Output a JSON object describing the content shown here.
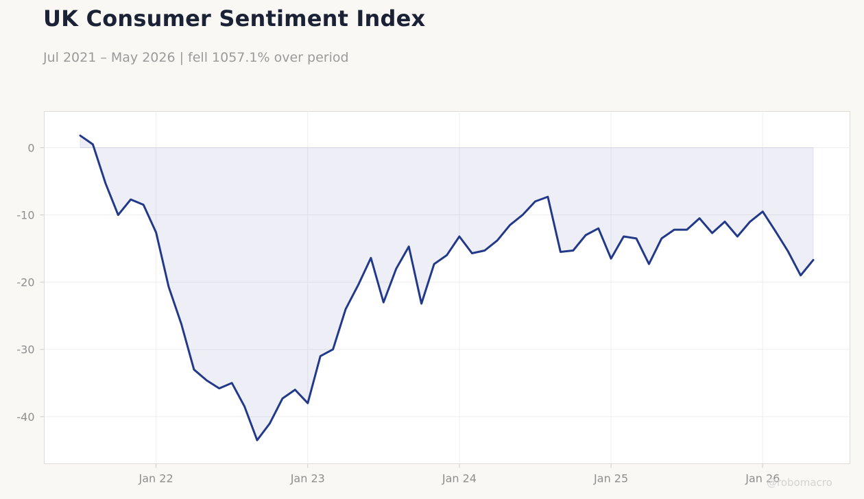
{
  "header": {
    "title": "UK Consumer Sentiment Index",
    "subtitle": "Jul 2021 – May 2026 | fell 1057.1% over period"
  },
  "watermark": "@robomacro",
  "colors": {
    "line": "#22398a",
    "fill": "#22398a",
    "background": "#f9f8f4",
    "plot_bg": "#ffffff",
    "grid": "#eeeeee",
    "tick_text": "#8e8e8e"
  },
  "chart_data": {
    "type": "area",
    "title": "UK Consumer Sentiment Index",
    "xlabel": "",
    "ylabel": "",
    "x_tick_labels": [
      "Jan 22",
      "Jan 23",
      "Jan 24",
      "Jan 25",
      "Jan 26"
    ],
    "y_ticks": [
      0,
      -10,
      -20,
      -30,
      -40
    ],
    "ylim": [
      -47,
      5.4
    ],
    "grid": true,
    "legend": "none",
    "baseline": 0,
    "x": [
      "2021-07",
      "2021-08",
      "2021-09",
      "2021-10",
      "2021-11",
      "2021-12",
      "2022-01",
      "2022-02",
      "2022-03",
      "2022-04",
      "2022-05",
      "2022-06",
      "2022-07",
      "2022-08",
      "2022-09",
      "2022-10",
      "2022-11",
      "2022-12",
      "2023-01",
      "2023-02",
      "2023-03",
      "2023-04",
      "2023-05",
      "2023-06",
      "2023-07",
      "2023-08",
      "2023-09",
      "2023-10",
      "2023-11",
      "2023-12",
      "2024-01",
      "2024-02",
      "2024-03",
      "2024-04",
      "2024-05",
      "2024-06",
      "2024-07",
      "2024-08",
      "2024-09",
      "2024-10",
      "2024-11",
      "2024-12",
      "2025-01",
      "2025-02",
      "2025-03",
      "2025-04",
      "2025-05",
      "2025-06",
      "2025-07",
      "2025-08",
      "2025-09",
      "2025-10",
      "2025-11",
      "2025-12",
      "2026-01",
      "2026-02",
      "2026-03",
      "2026-04",
      "2026-05"
    ],
    "values": [
      1.8,
      0.5,
      -5.3,
      -10.0,
      -7.7,
      -8.5,
      -12.6,
      -20.7,
      -26.2,
      -33.0,
      -34.6,
      -35.8,
      -35.0,
      -38.5,
      -43.5,
      -41.0,
      -37.3,
      -36.0,
      -38.0,
      -31.0,
      -30.0,
      -24.0,
      -20.4,
      -16.4,
      -23.0,
      -18.0,
      -14.7,
      -23.2,
      -17.3,
      -16.0,
      -13.2,
      -15.7,
      -15.3,
      -13.8,
      -11.5,
      -10.0,
      -8.0,
      -7.3,
      -15.5,
      -15.3,
      -13.0,
      -12.0,
      -16.5,
      -13.2,
      -13.5,
      -17.3,
      -13.5,
      -12.2,
      -12.2,
      -10.5,
      -12.7,
      -11.0,
      -13.2,
      -11.0,
      -9.5,
      -12.4,
      -15.4,
      -19.0,
      -16.7
    ]
  }
}
